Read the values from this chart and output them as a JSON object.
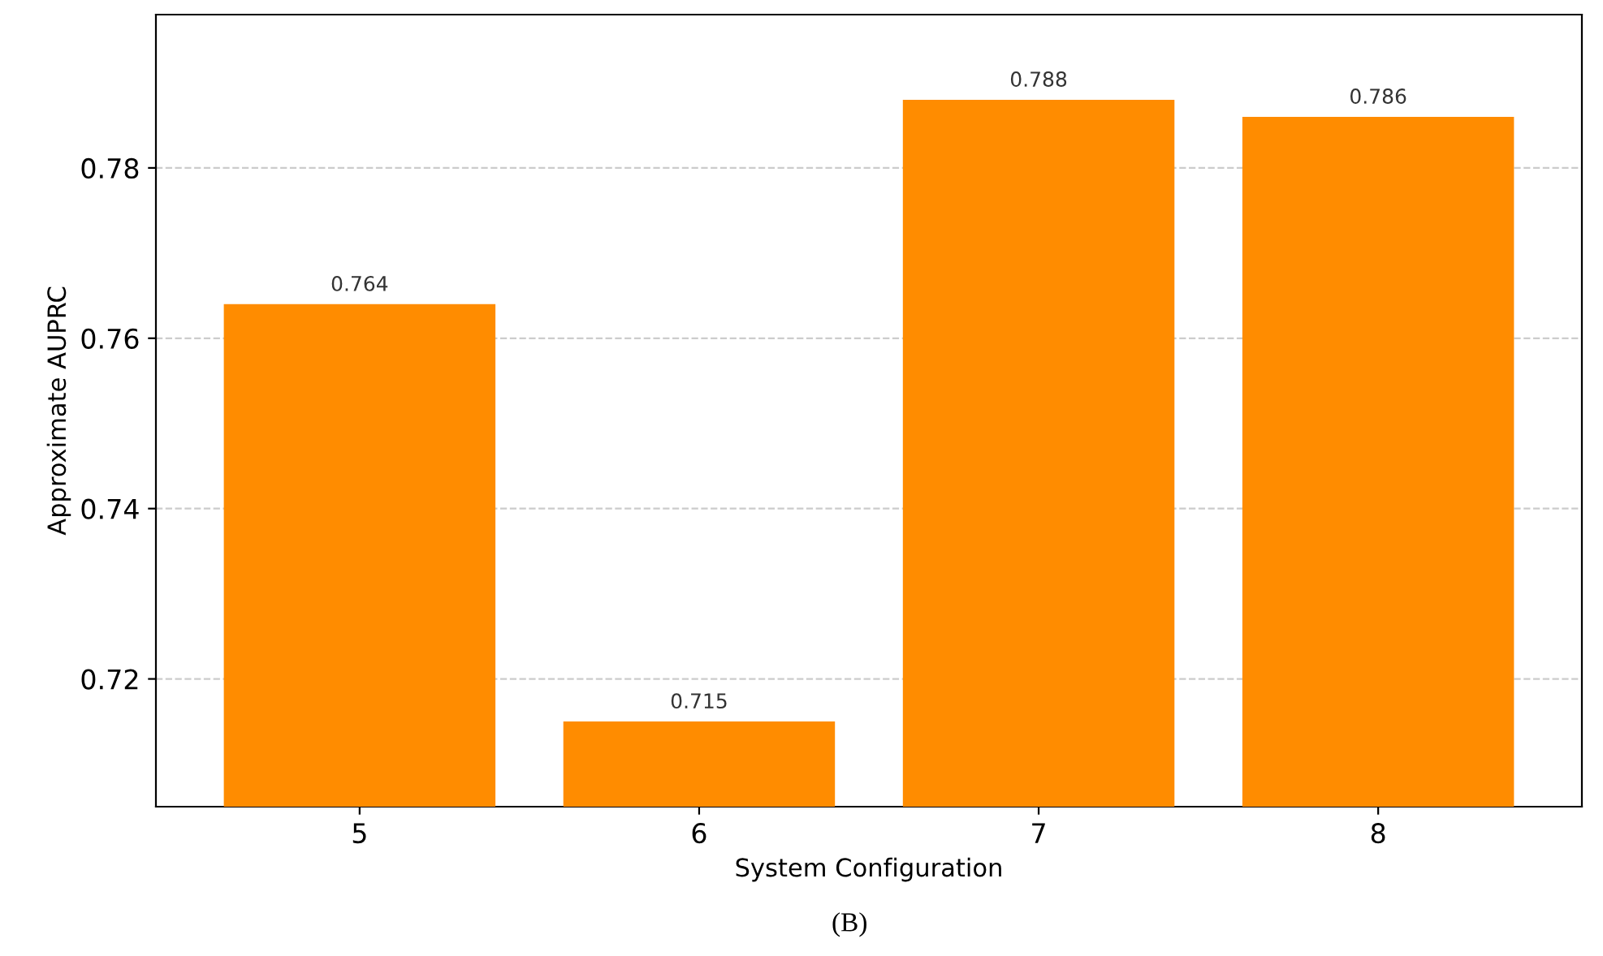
{
  "chart_data": {
    "type": "bar",
    "xlabel": "System Configuration",
    "ylabel": "Approximate AUPRC",
    "categories": [
      "5",
      "6",
      "7",
      "8"
    ],
    "values": [
      0.764,
      0.715,
      0.788,
      0.786
    ],
    "color": "#ff8c00",
    "ylim": [
      0.705,
      0.798
    ],
    "yticks": [
      0.72,
      0.74,
      0.76,
      0.78
    ],
    "grid": "y",
    "data_labels": true,
    "annotations": [
      "(B)"
    ]
  }
}
